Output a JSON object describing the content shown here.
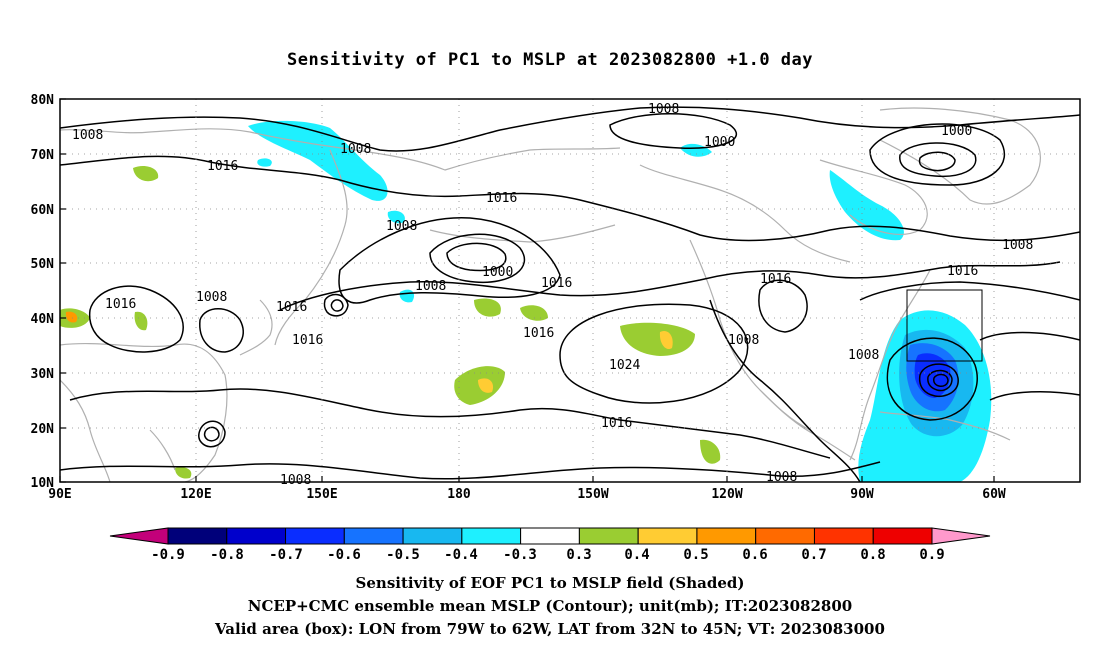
{
  "title": "Sensitivity of PC1 to MSLP at 2023082800 +1.0 day",
  "axes": {
    "lat_labels": [
      "80N",
      "70N",
      "60N",
      "50N",
      "40N",
      "30N",
      "20N",
      "10N"
    ],
    "lon_labels": [
      "90E",
      "120E",
      "150E",
      "180",
      "150W",
      "120W",
      "90W",
      "60W"
    ]
  },
  "contour_labels": {
    "c1008_a": "1008",
    "c1008_b": "1008",
    "c1008_c": "1008",
    "c1008_d": "1008",
    "c1008_e": "1008",
    "c1008_f": "1008",
    "c1008_g": "1008",
    "c1008_h": "1008",
    "c1008_i": "1008",
    "c1008_j": "1008",
    "c1008_k": "1008",
    "c1016_a": "1016",
    "c1016_b": "1016",
    "c1016_c": "1016",
    "c1016_d": "1016",
    "c1016_e": "1016",
    "c1016_f": "1016",
    "c1016_g": "1016",
    "c1016_h": "1016",
    "c1016_i": "1016",
    "c1016_j": "1016",
    "c1000_a": "1000",
    "c1000_b": "1000",
    "c1000_c": "1000",
    "c1024": "1024"
  },
  "colorbar": {
    "labels": [
      "-0.9",
      "-0.8",
      "-0.7",
      "-0.6",
      "-0.5",
      "-0.4",
      "-0.3",
      "0.3",
      "0.4",
      "0.5",
      "0.6",
      "0.7",
      "0.8",
      "0.9"
    ],
    "colors": [
      "#00007a",
      "#0000cc",
      "#0a2dff",
      "#1673ff",
      "#18b8f0",
      "#1ef0ff",
      "#ffffff",
      "#9acd32",
      "#ffcc33",
      "#ff9900",
      "#ff6a00",
      "#ff3300",
      "#ee0000"
    ],
    "min_arrow_color": "#c3007a",
    "max_arrow_color": "#ff99cc"
  },
  "captions": {
    "line1": "Sensitivity of EOF PC1 to MSLP field (Shaded)",
    "line2": "NCEP+CMC ensemble mean MSLP (Contour); unit(mb); IT:2023082800",
    "line3": "Valid area (box): LON from 79W to 62W, LAT from 32N to 45N; VT: 2023083000"
  }
}
